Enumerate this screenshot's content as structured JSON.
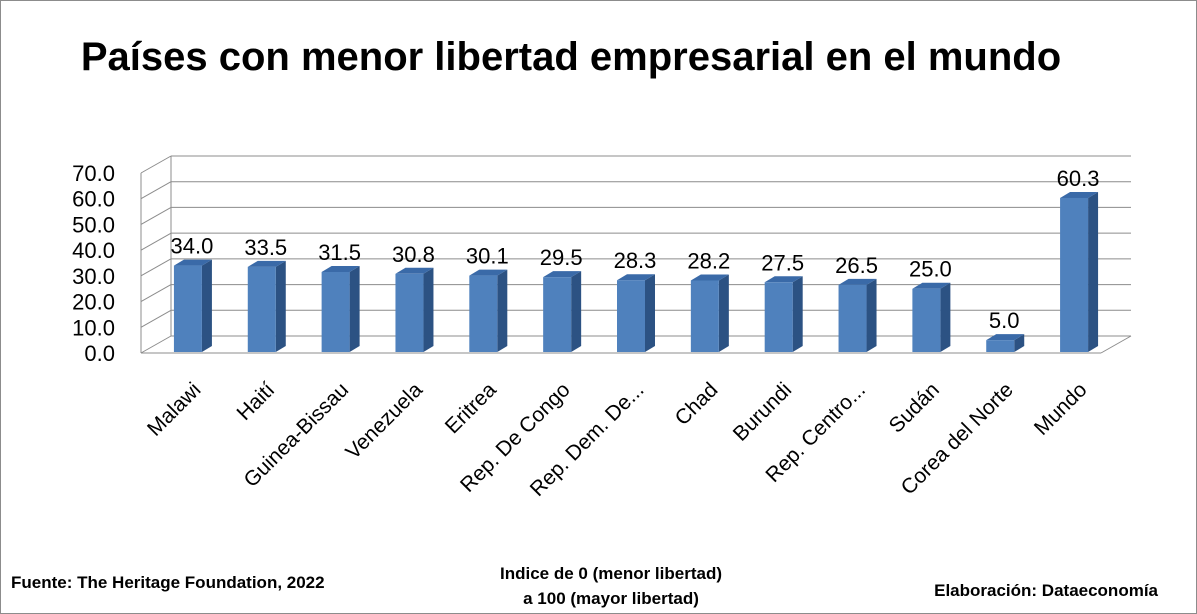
{
  "chart_data": {
    "type": "bar",
    "title": "Países con menor libertad empresarial en el mundo",
    "categories": [
      "Malawi",
      "Haití",
      "Guinea-Bissau",
      "Venezuela",
      "Eritrea",
      "Rep. De Congo",
      "Rep. Dem. De...",
      "Chad",
      "Burundi",
      "Rep. Centro...",
      "Sudán",
      "Corea del Norte",
      "Mundo"
    ],
    "values": [
      34.0,
      33.5,
      31.5,
      30.8,
      30.1,
      29.5,
      28.3,
      28.2,
      27.5,
      26.5,
      25.0,
      5.0,
      60.3
    ],
    "value_labels": [
      "34.0",
      "33.5",
      "31.5",
      "30.8",
      "30.1",
      "29.5",
      "28.3",
      "28.2",
      "27.5",
      "26.5",
      "25.0",
      "5.0",
      "60.3"
    ],
    "y_ticks": [
      "0.0",
      "10.0",
      "20.0",
      "30.0",
      "40.0",
      "50.0",
      "60.0",
      "70.0"
    ],
    "ylim": [
      0,
      70
    ],
    "grid": true,
    "legend": "none",
    "style": "3d-column",
    "bar_color": "#4f81bd",
    "bar_side_color": "#2c5283",
    "bar_top_color": "#3a6aa8"
  },
  "footer": {
    "source": "Fuente: The Heritage Foundation, 2022",
    "index_line1": "Indice de 0 (menor libertad)",
    "index_line2": "a 100  (mayor libertad)",
    "credit": "Elaboración: Dataeconomía"
  }
}
